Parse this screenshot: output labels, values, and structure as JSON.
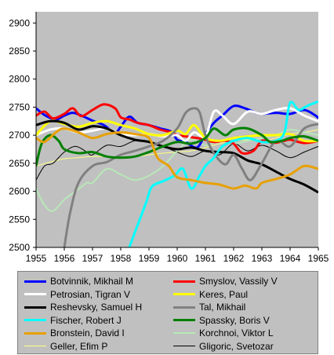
{
  "chart_data": {
    "type": "line",
    "title": "",
    "xlabel": "",
    "ylabel": "",
    "xlim": [
      1955,
      1965
    ],
    "ylim": [
      2500,
      2920
    ],
    "x_ticks": [
      "1955",
      "1956",
      "1957",
      "1958",
      "1959",
      "1960",
      "1961",
      "1962",
      "1963",
      "1964",
      "1965"
    ],
    "y_ticks": [
      "2500",
      "2550",
      "2600",
      "2650",
      "2700",
      "2750",
      "2800",
      "2850",
      "2900"
    ],
    "grid": false,
    "legend_position": "bottom",
    "plot_background": "#c0c0c0",
    "series": [
      {
        "name": "Botvinnik, Mikhail M",
        "color": "#0000ff",
        "width": 3,
        "x": [
          1955,
          1955.3,
          1955.7,
          1956,
          1956.3,
          1956.6,
          1957,
          1957.4,
          1957.8,
          1958,
          1958.3,
          1958.6,
          1959,
          1959.4,
          1959.8,
          1960,
          1960.3,
          1960.7,
          1961,
          1961.3,
          1961.6,
          1962,
          1962.4,
          1962.8,
          1963,
          1963.5,
          1964,
          1964.5,
          1964.9,
          1965
        ],
        "y": [
          2748,
          2736,
          2728,
          2735,
          2740,
          2735,
          2726,
          2718,
          2705,
          2715,
          2733,
          2722,
          2718,
          2712,
          2706,
          2692,
          2688,
          2678,
          2702,
          2722,
          2735,
          2752,
          2748,
          2740,
          2738,
          2740,
          2738,
          2745,
          2735,
          2730
        ]
      },
      {
        "name": "Smyslov, Vassily V",
        "color": "#ff0000",
        "width": 3,
        "x": [
          1955,
          1955.3,
          1955.6,
          1956,
          1956.3,
          1956.6,
          1957,
          1957.4,
          1957.8,
          1958,
          1958.3,
          1958.6,
          1959,
          1959.4,
          1959.8,
          1960,
          1960.3,
          1960.7,
          1961,
          1961.3,
          1961.7,
          1962,
          1962.3,
          1962.7,
          1963,
          1963.4,
          1963.8,
          1964,
          1964.5,
          1965
        ],
        "y": [
          2735,
          2742,
          2730,
          2738,
          2748,
          2734,
          2745,
          2755,
          2748,
          2732,
          2728,
          2722,
          2718,
          2710,
          2705,
          2700,
          2698,
          2695,
          2692,
          2688,
          2690,
          2685,
          2668,
          2672,
          2690,
          2686,
          2690,
          2692,
          2686,
          2690
        ]
      },
      {
        "name": "Petrosian, Tigran V",
        "color": "#ffffff",
        "width": 3,
        "x": [
          1955,
          1955.5,
          1956,
          1956.5,
          1957,
          1957.5,
          1958,
          1958.5,
          1959,
          1959.5,
          1960,
          1960.3,
          1960.6,
          1961,
          1961.3,
          1961.6,
          1962,
          1962.5,
          1963,
          1963.5,
          1964,
          1964.5,
          1965
        ],
        "y": [
          2700,
          2710,
          2712,
          2705,
          2708,
          2712,
          2702,
          2700,
          2702,
          2698,
          2700,
          2690,
          2705,
          2698,
          2742,
          2735,
          2720,
          2742,
          2738,
          2745,
          2748,
          2735,
          2725
        ]
      },
      {
        "name": "Keres, Paul",
        "color": "#ffff00",
        "width": 3,
        "x": [
          1955,
          1955.5,
          1956,
          1956.5,
          1957,
          1957.5,
          1958,
          1958.5,
          1959,
          1959.5,
          1960,
          1960.3,
          1960.6,
          1961,
          1961.5,
          1962,
          1962.5,
          1963,
          1963.5,
          1964,
          1964.5,
          1965
        ],
        "y": [
          2700,
          2725,
          2720,
          2715,
          2722,
          2725,
          2718,
          2712,
          2702,
          2700,
          2708,
          2702,
          2718,
          2695,
          2690,
          2695,
          2698,
          2700,
          2700,
          2702,
          2690,
          2690
        ]
      },
      {
        "name": "Reshevsky, Samuel H",
        "color": "#000000",
        "width": 3,
        "x": [
          1955,
          1955.5,
          1956,
          1956.5,
          1957,
          1957.5,
          1958,
          1958.5,
          1959,
          1959.5,
          1960,
          1960.5,
          1961,
          1961.5,
          1962,
          1962.5,
          1963,
          1963.5,
          1964,
          1964.5,
          1965
        ],
        "y": [
          2718,
          2725,
          2722,
          2710,
          2716,
          2712,
          2700,
          2692,
          2688,
          2680,
          2675,
          2678,
          2672,
          2670,
          2668,
          2655,
          2648,
          2635,
          2622,
          2612,
          2598
        ]
      },
      {
        "name": "Tal, Mikhail",
        "color": "#808080",
        "width": 3,
        "x": [
          1956,
          1956.2,
          1956.5,
          1957,
          1957.5,
          1958,
          1958.5,
          1959,
          1959.5,
          1960,
          1960.3,
          1960.6,
          1960.8,
          1961,
          1961.3,
          1961.7,
          1962,
          1962.3,
          1962.6,
          1963,
          1963.5,
          1964,
          1964.5,
          1965
        ],
        "y": [
          2500,
          2560,
          2615,
          2645,
          2652,
          2665,
          2672,
          2680,
          2690,
          2712,
          2740,
          2748,
          2740,
          2700,
          2668,
          2648,
          2665,
          2640,
          2620,
          2650,
          2690,
          2680,
          2712,
          2720
        ]
      },
      {
        "name": "Fischer, Robert J",
        "color": "#00ffff",
        "width": 3,
        "x": [
          1958.3,
          1958.6,
          1958.9,
          1959.1,
          1959.5,
          1959.9,
          1960.2,
          1960.5,
          1960.8,
          1961,
          1961.3,
          1961.6,
          1962,
          1962.5,
          1963,
          1963.5,
          1963.8,
          1964,
          1964.3,
          1964.6,
          1965
        ],
        "y": [
          2500,
          2540,
          2580,
          2608,
          2618,
          2628,
          2640,
          2605,
          2628,
          2645,
          2660,
          2680,
          2690,
          2695,
          2688,
          2690,
          2705,
          2758,
          2745,
          2752,
          2760
        ]
      },
      {
        "name": "Spassky, Boris V",
        "color": "#008000",
        "width": 3,
        "x": [
          1955,
          1955.2,
          1955.5,
          1955.8,
          1956,
          1956.5,
          1957,
          1957.5,
          1958,
          1958.5,
          1959,
          1959.5,
          1960,
          1960.5,
          1961,
          1961.3,
          1961.7,
          1962,
          1962.5,
          1963,
          1963.3,
          1963.7,
          1964,
          1964.5,
          1965
        ],
        "y": [
          2645,
          2685,
          2700,
          2690,
          2675,
          2668,
          2670,
          2662,
          2660,
          2662,
          2670,
          2680,
          2688,
          2685,
          2695,
          2712,
          2700,
          2710,
          2712,
          2700,
          2688,
          2690,
          2695,
          2698,
          2690
        ]
      },
      {
        "name": "Bronstein, David I",
        "color": "#e8a000",
        "width": 3,
        "x": [
          1955,
          1955.3,
          1955.7,
          1956,
          1956.5,
          1957,
          1957.5,
          1958,
          1958.5,
          1959,
          1959.3,
          1959.7,
          1960,
          1960.5,
          1961,
          1961.5,
          1962,
          1962.4,
          1962.8,
          1963,
          1963.5,
          1964,
          1964.5,
          1965
        ],
        "y": [
          2695,
          2688,
          2705,
          2712,
          2705,
          2695,
          2702,
          2705,
          2702,
          2695,
          2660,
          2645,
          2625,
          2620,
          2615,
          2612,
          2605,
          2610,
          2605,
          2615,
          2622,
          2630,
          2645,
          2640
        ]
      },
      {
        "name": "Korchnoi, Viktor L",
        "color": "#b8e8b8",
        "width": 2,
        "x": [
          1955,
          1955.3,
          1955.6,
          1956,
          1956.4,
          1956.8,
          1957,
          1957.5,
          1958,
          1958.5,
          1959,
          1959.5,
          1960,
          1960.5,
          1961,
          1961.5,
          1962,
          1962.5,
          1963,
          1963.5,
          1964,
          1964.5,
          1965
        ],
        "y": [
          2605,
          2575,
          2565,
          2585,
          2600,
          2615,
          2615,
          2640,
          2630,
          2620,
          2628,
          2645,
          2672,
          2692,
          2682,
          2690,
          2685,
          2690,
          2695,
          2700,
          2710,
          2705,
          2700
        ]
      },
      {
        "name": "Geller, Efim P",
        "color": "#ffff80",
        "width": 1,
        "x": [
          1955,
          1955.5,
          1956,
          1956.5,
          1957,
          1957.5,
          1958,
          1958.5,
          1959,
          1959.5,
          1960,
          1960.5,
          1961,
          1961.5,
          1962,
          1962.5,
          1963,
          1963.5,
          1964,
          1964.5,
          1965
        ],
        "y": [
          2645,
          2652,
          2658,
          2660,
          2662,
          2662,
          2660,
          2662,
          2665,
          2668,
          2670,
          2672,
          2678,
          2685,
          2690,
          2692,
          2690,
          2695,
          2702,
          2705,
          2710
        ]
      },
      {
        "name": "Gligoric, Svetozar",
        "color": "#000000",
        "width": 1,
        "x": [
          1955,
          1955.3,
          1955.6,
          1956,
          1956.4,
          1956.8,
          1957,
          1957.5,
          1958,
          1958.5,
          1959,
          1959.5,
          1960,
          1960.5,
          1961,
          1961.5,
          1962,
          1962.5,
          1963,
          1963.5,
          1964,
          1964.5,
          1965
        ],
        "y": [
          2620,
          2645,
          2650,
          2670,
          2680,
          2670,
          2665,
          2682,
          2680,
          2690,
          2688,
          2680,
          2670,
          2662,
          2672,
          2665,
          2685,
          2672,
          2682,
          2672,
          2660,
          2670,
          2680
        ]
      }
    ]
  }
}
